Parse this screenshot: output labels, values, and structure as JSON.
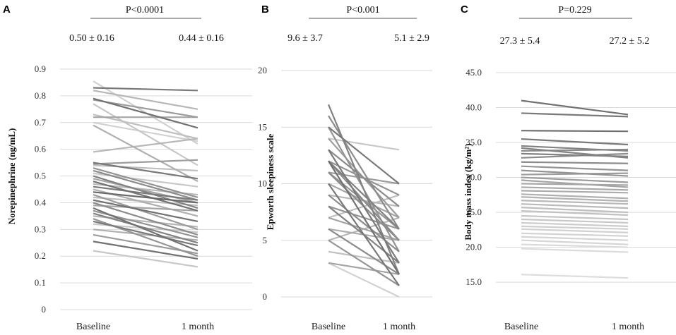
{
  "chart_data": [
    {
      "panel": "A",
      "type": "line",
      "pvalue": "P<0.0001",
      "baseline_stat": "0.50 ± 0.16",
      "month_stat": "0.44 ± 0.16",
      "ylabel": "Norepinephrine (ng/mL)",
      "categories": [
        "Baseline",
        "1 month"
      ],
      "ylim": [
        0,
        0.9
      ],
      "ticks": [
        0,
        0.1,
        0.2,
        0.3,
        0.4,
        0.5,
        0.6,
        0.7,
        0.8,
        0.9
      ],
      "tick_labels": [
        "0",
        "0.1",
        "0.2",
        "0.3",
        "0.4",
        "0.5",
        "0.6",
        "0.7",
        "0.8",
        "0.9"
      ],
      "pairs": [
        [
          0.855,
          0.62,
          0.85
        ],
        [
          0.83,
          0.82,
          0.35
        ],
        [
          0.82,
          0.75,
          0.7
        ],
        [
          0.79,
          0.68,
          0.3
        ],
        [
          0.785,
          0.72,
          0.55
        ],
        [
          0.77,
          0.54,
          0.8
        ],
        [
          0.73,
          0.64,
          0.75
        ],
        [
          0.72,
          0.72,
          0.6
        ],
        [
          0.7,
          0.63,
          0.85
        ],
        [
          0.69,
          0.48,
          0.65
        ],
        [
          0.59,
          0.64,
          0.7
        ],
        [
          0.55,
          0.49,
          0.35
        ],
        [
          0.545,
          0.56,
          0.55
        ],
        [
          0.54,
          0.52,
          0.75
        ],
        [
          0.53,
          0.42,
          0.5
        ],
        [
          0.52,
          0.41,
          0.45
        ],
        [
          0.51,
          0.46,
          0.8
        ],
        [
          0.5,
          0.38,
          0.4
        ],
        [
          0.49,
          0.4,
          0.6
        ],
        [
          0.48,
          0.37,
          0.3
        ],
        [
          0.47,
          0.43,
          0.7
        ],
        [
          0.46,
          0.41,
          0.35
        ],
        [
          0.45,
          0.35,
          0.65
        ],
        [
          0.44,
          0.4,
          0.25
        ],
        [
          0.43,
          0.3,
          0.55
        ],
        [
          0.42,
          0.39,
          0.75
        ],
        [
          0.41,
          0.33,
          0.3
        ],
        [
          0.4,
          0.28,
          0.45
        ],
        [
          0.39,
          0.37,
          0.6
        ],
        [
          0.38,
          0.22,
          0.3
        ],
        [
          0.37,
          0.27,
          0.5
        ],
        [
          0.36,
          0.25,
          0.4
        ],
        [
          0.35,
          0.31,
          0.7
        ],
        [
          0.34,
          0.2,
          0.5
        ],
        [
          0.33,
          0.24,
          0.35
        ],
        [
          0.32,
          0.29,
          0.8
        ],
        [
          0.3,
          0.26,
          0.65
        ],
        [
          0.28,
          0.21,
          0.55
        ],
        [
          0.255,
          0.19,
          0.3
        ],
        [
          0.22,
          0.16,
          0.8
        ]
      ]
    },
    {
      "panel": "B",
      "type": "line",
      "pvalue": "P<0.001",
      "baseline_stat": "9.6 ± 3.7",
      "month_stat": "5.1 ± 2.9",
      "ylabel": "Epworth sleepiness scale",
      "categories": [
        "Baseline",
        "1 month"
      ],
      "ylim": [
        0,
        20
      ],
      "ticks": [
        0,
        5,
        10,
        15,
        20
      ],
      "tick_labels": [
        "0",
        "5",
        "10",
        "15",
        "20"
      ],
      "pairs": [
        [
          17,
          2,
          0.4
        ],
        [
          16,
          6,
          0.45
        ],
        [
          15,
          10,
          0.35
        ],
        [
          15,
          4,
          0.5
        ],
        [
          14,
          13,
          0.8
        ],
        [
          14,
          7,
          0.55
        ],
        [
          13,
          8,
          0.45
        ],
        [
          13,
          3,
          0.35
        ],
        [
          12,
          9,
          0.5
        ],
        [
          12,
          6,
          0.4
        ],
        [
          12,
          2,
          0.3
        ],
        [
          11,
          10,
          0.55
        ],
        [
          11,
          5,
          0.45
        ],
        [
          10,
          7,
          0.6
        ],
        [
          10,
          1,
          0.35
        ],
        [
          9,
          8,
          0.7
        ],
        [
          9,
          4,
          0.45
        ],
        [
          8,
          6,
          0.5
        ],
        [
          8,
          3,
          0.4
        ],
        [
          7,
          5,
          0.6
        ],
        [
          7,
          9,
          0.75
        ],
        [
          6,
          2,
          0.45
        ],
        [
          6,
          5,
          0.65
        ],
        [
          5,
          1,
          0.5
        ],
        [
          5,
          7,
          0.7
        ],
        [
          4,
          3,
          0.75
        ],
        [
          3,
          0,
          0.85
        ],
        [
          3,
          2,
          0.6
        ],
        [
          12,
          5,
          0.45
        ],
        [
          11,
          6,
          0.5
        ]
      ]
    },
    {
      "panel": "C",
      "type": "line",
      "pvalue": "P=0.229",
      "baseline_stat": "27.3 ± 5.4",
      "month_stat": "27.2 ± 5.2",
      "ylabel": "Body mass index (kg/m²)",
      "categories": [
        "Baseline",
        "1 month"
      ],
      "ylim": [
        14,
        45
      ],
      "ticks": [
        15,
        20,
        25,
        30,
        35,
        40,
        45
      ],
      "tick_labels": [
        "15.0",
        "20.0",
        "25.0",
        "30.0",
        "35.0",
        "40.0",
        "45.0"
      ],
      "pairs": [
        [
          41.0,
          39.0,
          0.3
        ],
        [
          39.2,
          38.7,
          0.35
        ],
        [
          36.7,
          36.6,
          0.3
        ],
        [
          35.5,
          34.7,
          0.35
        ],
        [
          34.5,
          33.8,
          0.4
        ],
        [
          34.2,
          32.8,
          0.4
        ],
        [
          33.8,
          34.0,
          0.45
        ],
        [
          33.4,
          33.0,
          0.4
        ],
        [
          32.8,
          33.4,
          0.45
        ],
        [
          32.2,
          32.0,
          0.45
        ],
        [
          31.6,
          31.0,
          0.5
        ],
        [
          31.0,
          30.2,
          0.5
        ],
        [
          30.4,
          30.6,
          0.55
        ],
        [
          30.0,
          29.3,
          0.55
        ],
        [
          29.6,
          28.6,
          0.6
        ],
        [
          29.1,
          28.9,
          0.6
        ],
        [
          28.6,
          28.2,
          0.62
        ],
        [
          28.1,
          27.8,
          0.64
        ],
        [
          27.6,
          27.0,
          0.66
        ],
        [
          27.2,
          26.6,
          0.68
        ],
        [
          26.7,
          26.2,
          0.7
        ],
        [
          26.2,
          25.6,
          0.72
        ],
        [
          25.7,
          25.0,
          0.74
        ],
        [
          25.2,
          24.6,
          0.76
        ],
        [
          24.5,
          24.0,
          0.78
        ],
        [
          24.0,
          23.5,
          0.8
        ],
        [
          23.5,
          23.0,
          0.82
        ],
        [
          23.0,
          22.6,
          0.84
        ],
        [
          22.6,
          22.1,
          0.85
        ],
        [
          22.0,
          21.6,
          0.86
        ],
        [
          21.5,
          21.0,
          0.87
        ],
        [
          21.0,
          20.4,
          0.88
        ],
        [
          20.4,
          20.0,
          0.9
        ],
        [
          19.8,
          19.3,
          0.91
        ],
        [
          16.1,
          15.6,
          0.92
        ]
      ]
    }
  ]
}
